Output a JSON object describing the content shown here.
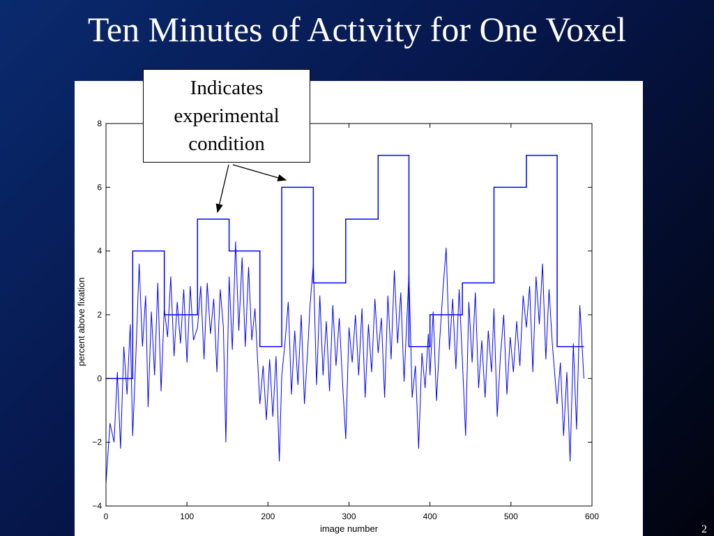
{
  "slide": {
    "title": "Ten Minutes of Activity for One Voxel",
    "page_number": "2"
  },
  "callout": {
    "lines": [
      "Indicates",
      "experimental",
      "condition"
    ]
  },
  "colors": {
    "background_dark": "#01030d",
    "background_blue": "#0a2a6e",
    "series_line": "#0000ff",
    "figure_bg": "#ffffff"
  },
  "chart_data": {
    "type": "line",
    "title": "",
    "xlabel": "image number",
    "ylabel": "percent above fixation",
    "xlim": [
      0,
      600
    ],
    "ylim": [
      -4,
      8
    ],
    "x_ticks": [
      0,
      100,
      200,
      300,
      400,
      500,
      600
    ],
    "y_ticks": [
      -4,
      -2,
      0,
      2,
      4,
      6,
      8
    ],
    "tick_labels": {
      "x": [
        "0",
        "100",
        "200",
        "300",
        "400",
        "500",
        "600"
      ],
      "y": [
        "−4",
        "−2",
        "0",
        "2",
        "4",
        "6",
        "8"
      ]
    },
    "grid": false,
    "series": [
      {
        "role": "condition",
        "steps": [
          {
            "x0": 0,
            "x1": 33,
            "y": 0
          },
          {
            "x0": 33,
            "x1": 72,
            "y": 4
          },
          {
            "x0": 72,
            "x1": 113,
            "y": 2
          },
          {
            "x0": 113,
            "x1": 152,
            "y": 5
          },
          {
            "x0": 152,
            "x1": 190,
            "y": 4
          },
          {
            "x0": 190,
            "x1": 217,
            "y": 1
          },
          {
            "x0": 217,
            "x1": 256,
            "y": 6
          },
          {
            "x0": 256,
            "x1": 296,
            "y": 3
          },
          {
            "x0": 296,
            "x1": 336,
            "y": 5
          },
          {
            "x0": 336,
            "x1": 374,
            "y": 7
          },
          {
            "x0": 374,
            "x1": 400,
            "y": 1
          },
          {
            "x0": 400,
            "x1": 440,
            "y": 2
          },
          {
            "x0": 440,
            "x1": 479,
            "y": 3
          },
          {
            "x0": 479,
            "x1": 519,
            "y": 6
          },
          {
            "x0": 519,
            "x1": 557,
            "y": 7
          },
          {
            "x0": 557,
            "x1": 590,
            "y": 1
          }
        ]
      },
      {
        "role": "measured",
        "x": [
          0,
          5,
          10,
          14,
          18,
          22,
          26,
          30,
          33,
          37,
          41,
          45,
          49,
          52,
          56,
          60,
          64,
          68,
          72,
          76,
          80,
          84,
          88,
          92,
          96,
          100,
          104,
          108,
          113,
          117,
          121,
          125,
          129,
          133,
          137,
          141,
          145,
          148,
          152,
          156,
          160,
          164,
          168,
          172,
          176,
          180,
          184,
          190,
          194,
          198,
          202,
          206,
          210,
          214,
          217,
          221,
          225,
          229,
          233,
          237,
          241,
          245,
          249,
          252,
          256,
          260,
          264,
          268,
          272,
          276,
          280,
          284,
          288,
          292,
          296,
          300,
          304,
          308,
          312,
          316,
          320,
          324,
          328,
          332,
          336,
          340,
          344,
          348,
          352,
          356,
          360,
          364,
          368,
          374,
          378,
          382,
          386,
          390,
          394,
          398,
          400,
          404,
          408,
          412,
          416,
          420,
          424,
          428,
          432,
          436,
          440,
          444,
          448,
          452,
          456,
          460,
          464,
          468,
          472,
          476,
          479,
          483,
          487,
          491,
          495,
          499,
          503,
          507,
          511,
          515,
          519,
          523,
          527,
          531,
          535,
          539,
          543,
          547,
          551,
          557,
          561,
          565,
          569,
          573,
          577,
          581,
          585,
          590
        ],
        "y": [
          -3.3,
          -1.4,
          -2.0,
          0.2,
          -2.2,
          1.0,
          -0.5,
          1.7,
          -1.8,
          0.8,
          3.6,
          1.0,
          2.6,
          -0.9,
          2.1,
          0.1,
          3.0,
          -0.4,
          2.2,
          1.3,
          3.2,
          0.7,
          2.4,
          1.1,
          2.8,
          0.5,
          2.9,
          1.2,
          1.6,
          2.9,
          0.6,
          3.0,
          1.4,
          2.5,
          0.2,
          2.8,
          1.6,
          -2.0,
          3.2,
          0.9,
          4.3,
          1.5,
          3.8,
          1.0,
          3.5,
          1.2,
          2.2,
          -0.8,
          0.4,
          -1.3,
          0.6,
          -1.2,
          0.7,
          -2.6,
          0.1,
          1.1,
          2.4,
          -0.5,
          1.5,
          -0.2,
          2.0,
          -0.8,
          0.9,
          2.3,
          3.6,
          -0.2,
          2.6,
          0.1,
          1.8,
          -0.4,
          2.3,
          0.4,
          1.9,
          -0.1,
          -1.9,
          1.6,
          0.5,
          2.0,
          0.1,
          2.2,
          -0.6,
          1.7,
          0.2,
          2.5,
          0.8,
          1.9,
          -0.6,
          2.6,
          0.6,
          3.4,
          1.1,
          2.7,
          -0.1,
          3.3,
          -0.6,
          0.4,
          -2.2,
          0.8,
          -0.3,
          1.4,
          0.1,
          2.1,
          -0.7,
          1.2,
          2.8,
          4.1,
          0.9,
          2.5,
          0.3,
          2.8,
          0.6,
          -1.8,
          2.4,
          0.5,
          2.7,
          -0.3,
          1.2,
          -0.6,
          1.5,
          0.2,
          2.2,
          -1.2,
          0.7,
          2.0,
          -0.5,
          1.3,
          0.2,
          1.8,
          0.4,
          2.6,
          1.6,
          2.9,
          0.2,
          3.2,
          1.7,
          3.6,
          0.6,
          2.8,
          1.1,
          -0.8,
          0.5,
          -1.8,
          0.2,
          -2.6,
          1.1,
          -1.6,
          2.3,
          0.0
        ]
      }
    ]
  }
}
